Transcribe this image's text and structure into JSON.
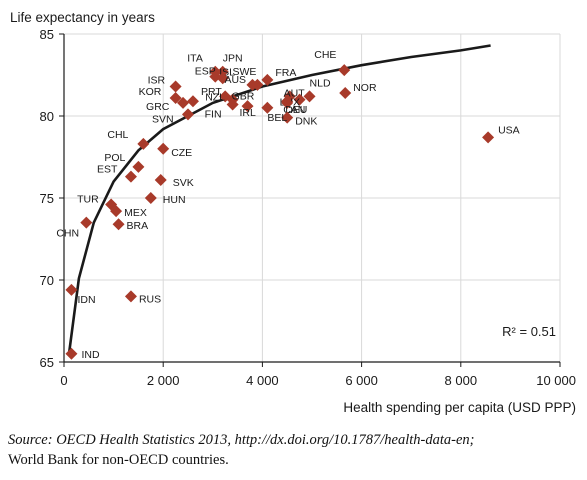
{
  "chart_data": {
    "type": "scatter",
    "ylabel": "Life expectancy in years",
    "xlabel": "Health spending per capita (USD PPP)",
    "xlim": [
      0,
      10000
    ],
    "ylim": [
      65,
      85
    ],
    "x_ticks": [
      0,
      2000,
      4000,
      6000,
      8000,
      10000
    ],
    "x_tick_labels": [
      "0",
      "2 000",
      "4 000",
      "6 000",
      "8 000",
      "10 000"
    ],
    "y_ticks": [
      65,
      70,
      75,
      80,
      85
    ],
    "y_tick_labels": [
      "65",
      "70",
      "75",
      "80",
      "85"
    ],
    "grid": true,
    "marker_color": "#a83a2a",
    "trend_color": "#1a1a1a",
    "annotation": "R² = 0.51",
    "trendline": {
      "type": "logarithmic",
      "points": [
        {
          "x": 100,
          "y": 65.5
        },
        {
          "x": 300,
          "y": 70.1
        },
        {
          "x": 600,
          "y": 73.5
        },
        {
          "x": 1000,
          "y": 76.0
        },
        {
          "x": 1500,
          "y": 77.9
        },
        {
          "x": 2000,
          "y": 79.2
        },
        {
          "x": 3000,
          "y": 80.8
        },
        {
          "x": 4000,
          "y": 81.8
        },
        {
          "x": 5000,
          "y": 82.5
        },
        {
          "x": 6000,
          "y": 83.1
        },
        {
          "x": 7000,
          "y": 83.6
        },
        {
          "x": 8000,
          "y": 84.0
        },
        {
          "x": 8600,
          "y": 84.3
        }
      ]
    },
    "points": [
      {
        "label": "CHE",
        "x": 5650,
        "y": 82.8
      },
      {
        "label": "NOR",
        "x": 5670,
        "y": 81.4
      },
      {
        "label": "USA",
        "x": 8550,
        "y": 78.7
      },
      {
        "label": "ITA",
        "x": 3050,
        "y": 82.7
      },
      {
        "label": "JPN",
        "x": 3200,
        "y": 82.7
      },
      {
        "label": "ISL",
        "x": 3050,
        "y": 82.4
      },
      {
        "label": "ESP",
        "x": 3200,
        "y": 82.3
      },
      {
        "label": "AUS",
        "x": 3800,
        "y": 81.9
      },
      {
        "label": "SWE",
        "x": 3900,
        "y": 81.9
      },
      {
        "label": "FRA",
        "x": 4100,
        "y": 82.2
      },
      {
        "label": "AUT",
        "x": 4550,
        "y": 81.2
      },
      {
        "label": "NLD",
        "x": 4950,
        "y": 81.2
      },
      {
        "label": "CAN",
        "x": 4500,
        "y": 80.9
      },
      {
        "label": "LUX",
        "x": 4750,
        "y": 81.0
      },
      {
        "label": "DEU",
        "x": 4500,
        "y": 80.8
      },
      {
        "label": "DNK",
        "x": 4500,
        "y": 79.9
      },
      {
        "label": "ISR",
        "x": 2250,
        "y": 81.8
      },
      {
        "label": "KOR",
        "x": 2250,
        "y": 81.1
      },
      {
        "label": "PRT",
        "x": 2600,
        "y": 80.9
      },
      {
        "label": "NZL",
        "x": 3250,
        "y": 81.2
      },
      {
        "label": "GRC",
        "x": 2400,
        "y": 80.8
      },
      {
        "label": "GBR",
        "x": 3400,
        "y": 81.0
      },
      {
        "label": "FIN",
        "x": 3400,
        "y": 80.7
      },
      {
        "label": "IRL",
        "x": 3700,
        "y": 80.6
      },
      {
        "label": "BEL",
        "x": 4100,
        "y": 80.5
      },
      {
        "label": "SVN",
        "x": 2500,
        "y": 80.1
      },
      {
        "label": "CHL",
        "x": 1600,
        "y": 78.3
      },
      {
        "label": "CZE",
        "x": 2000,
        "y": 78.0
      },
      {
        "label": "POL",
        "x": 1500,
        "y": 76.9
      },
      {
        "label": "EST",
        "x": 1350,
        "y": 76.3
      },
      {
        "label": "SVK",
        "x": 1950,
        "y": 76.1
      },
      {
        "label": "HUN",
        "x": 1750,
        "y": 75.0
      },
      {
        "label": "TUR",
        "x": 950,
        "y": 74.6
      },
      {
        "label": "MEX",
        "x": 1050,
        "y": 74.2
      },
      {
        "label": "BRA",
        "x": 1100,
        "y": 73.4
      },
      {
        "label": "CHN",
        "x": 450,
        "y": 73.5
      },
      {
        "label": "IDN",
        "x": 150,
        "y": 69.4
      },
      {
        "label": "RUS",
        "x": 1350,
        "y": 69.0
      },
      {
        "label": "IND",
        "x": 150,
        "y": 65.5
      }
    ]
  },
  "source": {
    "label": "Source:",
    "text": "OECD Health Statistics 2013, http://dx.doi.org/10.1787/health-data-en;",
    "line2": "World Bank for non-OECD countries."
  }
}
